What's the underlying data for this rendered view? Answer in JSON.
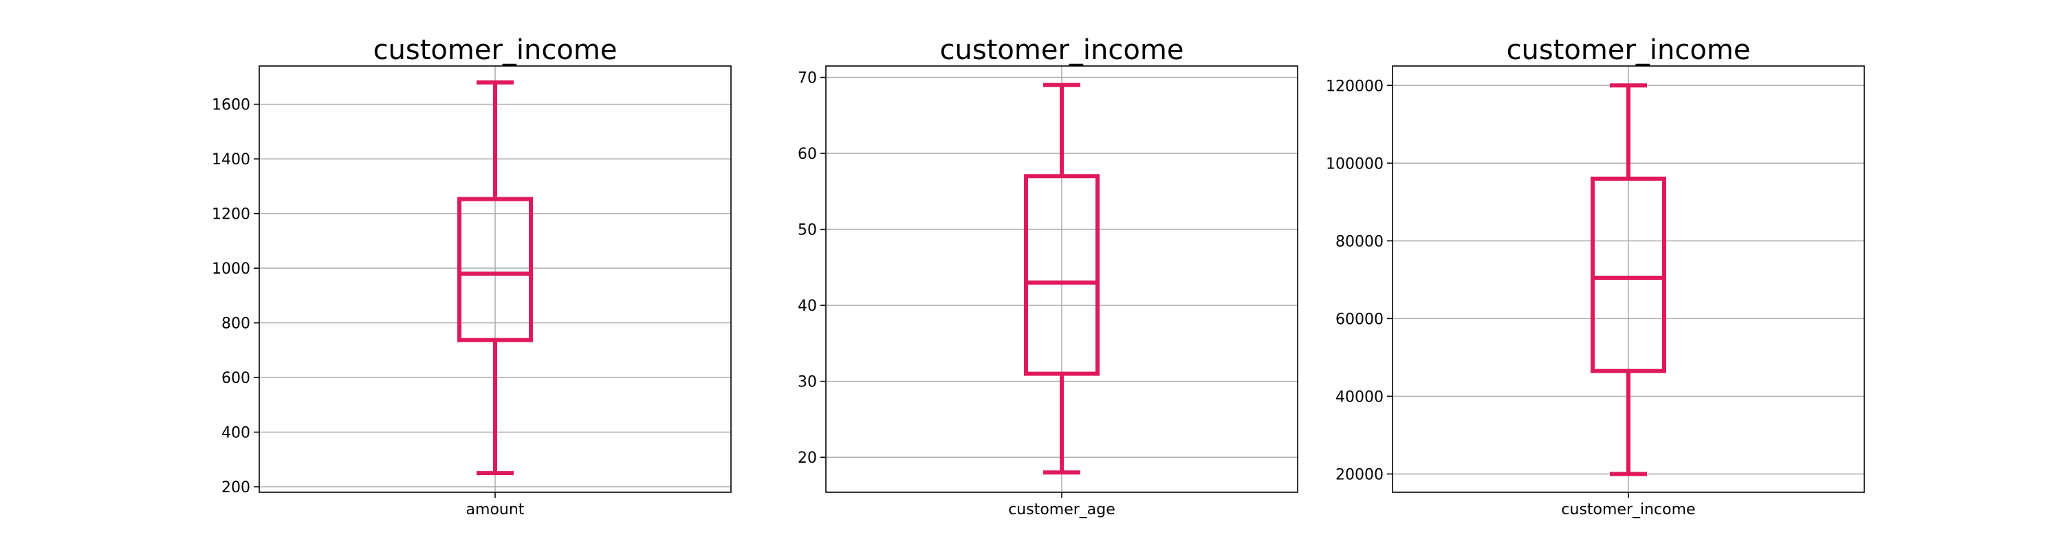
{
  "style": {
    "box_color": "#e0195f",
    "grid": true
  },
  "chart_data": [
    {
      "type": "box",
      "title": "customer_income",
      "categories": [
        "amount"
      ],
      "ylim": [
        180,
        1740
      ],
      "yticks": [
        200,
        400,
        600,
        800,
        1000,
        1200,
        1400,
        1600
      ],
      "stats": {
        "whisker_low": 250,
        "q1": 737,
        "median": 980,
        "q3": 1253,
        "whisker_high": 1680
      }
    },
    {
      "type": "box",
      "title": "customer_income",
      "categories": [
        "customer_age"
      ],
      "ylim": [
        15.4,
        71.5
      ],
      "yticks": [
        20,
        30,
        40,
        50,
        60,
        70
      ],
      "stats": {
        "whisker_low": 18,
        "q1": 31,
        "median": 43,
        "q3": 57,
        "whisker_high": 69
      }
    },
    {
      "type": "box",
      "title": "customer_income",
      "categories": [
        "customer_income"
      ],
      "ylim": [
        15300,
        125000
      ],
      "yticks": [
        20000,
        40000,
        60000,
        80000,
        100000,
        120000
      ],
      "stats": {
        "whisker_low": 20000,
        "q1": 46500,
        "median": 70500,
        "q3": 96000,
        "whisker_high": 120000
      }
    }
  ]
}
